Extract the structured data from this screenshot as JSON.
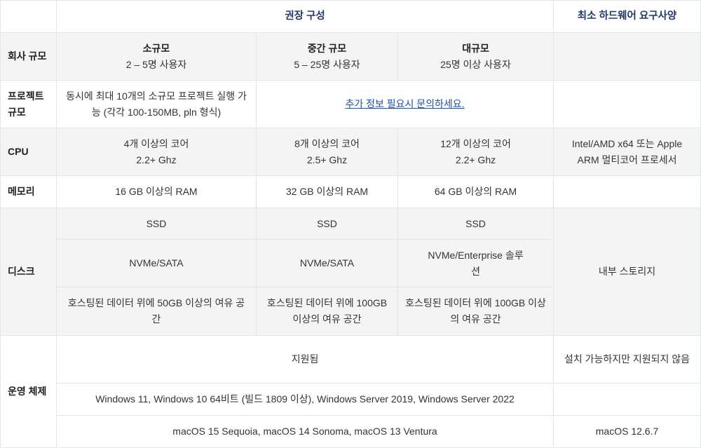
{
  "header": {
    "recommended": "권장 구성",
    "minimum": "최소 하드웨어 요구사양"
  },
  "company_size": {
    "label": "회사 규모",
    "small": {
      "title": "소규모",
      "desc": "2 – 5명 사용자"
    },
    "medium": {
      "title": "중간 규모",
      "desc": "5 – 25명 사용자"
    },
    "large": {
      "title": "대규모",
      "desc": "25명 이상 사용자"
    }
  },
  "project_size": {
    "label": "프로젝트 규모",
    "small": "동시에 최대 10개의 소규모 프로젝트 실행 가능 (각각 100-150MB, pln 형식)",
    "contact_link": "추가 정보 필요시 문의하세요."
  },
  "cpu": {
    "label": "CPU",
    "small": [
      "4개 이상의 코어",
      "2.2+ Ghz"
    ],
    "medium": [
      "8개 이상의 코어",
      "2.5+ Ghz"
    ],
    "large": [
      "12개 이상의 코어",
      "2.2+ Ghz"
    ],
    "minimum": "Intel/AMD x64 또는 Apple ARM 멀티코어 프로세서"
  },
  "memory": {
    "label": "메모리",
    "small": "16 GB 이상의 RAM",
    "medium": "32 GB 이상의 RAM",
    "large": "64 GB 이상의 RAM"
  },
  "disk": {
    "label": "디스크",
    "type": [
      "SSD",
      "SSD",
      "SSD"
    ],
    "interface": [
      "NVMe/SATA",
      "NVMe/SATA",
      "NVMe/Enterprise 솔루션"
    ],
    "space": [
      "호스팅된 데이터 위에 50GB 이상의 여유 공간",
      "호스팅된 데이터 위에 100GB 이상의 여유 공간",
      "호스팅된 데이터 위에 100GB 이상의 여유 공간"
    ],
    "minimum": "내부 스토리지"
  },
  "os": {
    "label": "운영 체제",
    "supported": "지원됨",
    "unsupported": "설치 가능하지만 지원되지 않음",
    "windows": "Windows 11, Windows 10 64비트 (빌드 1809 이상), Windows Server 2019, Windows Server 2022",
    "macos": "macOS 15 Sequoia, macOS 14 Sonoma, macOS 13 Ventura",
    "macos_minimum": "macOS 12.6.7"
  }
}
